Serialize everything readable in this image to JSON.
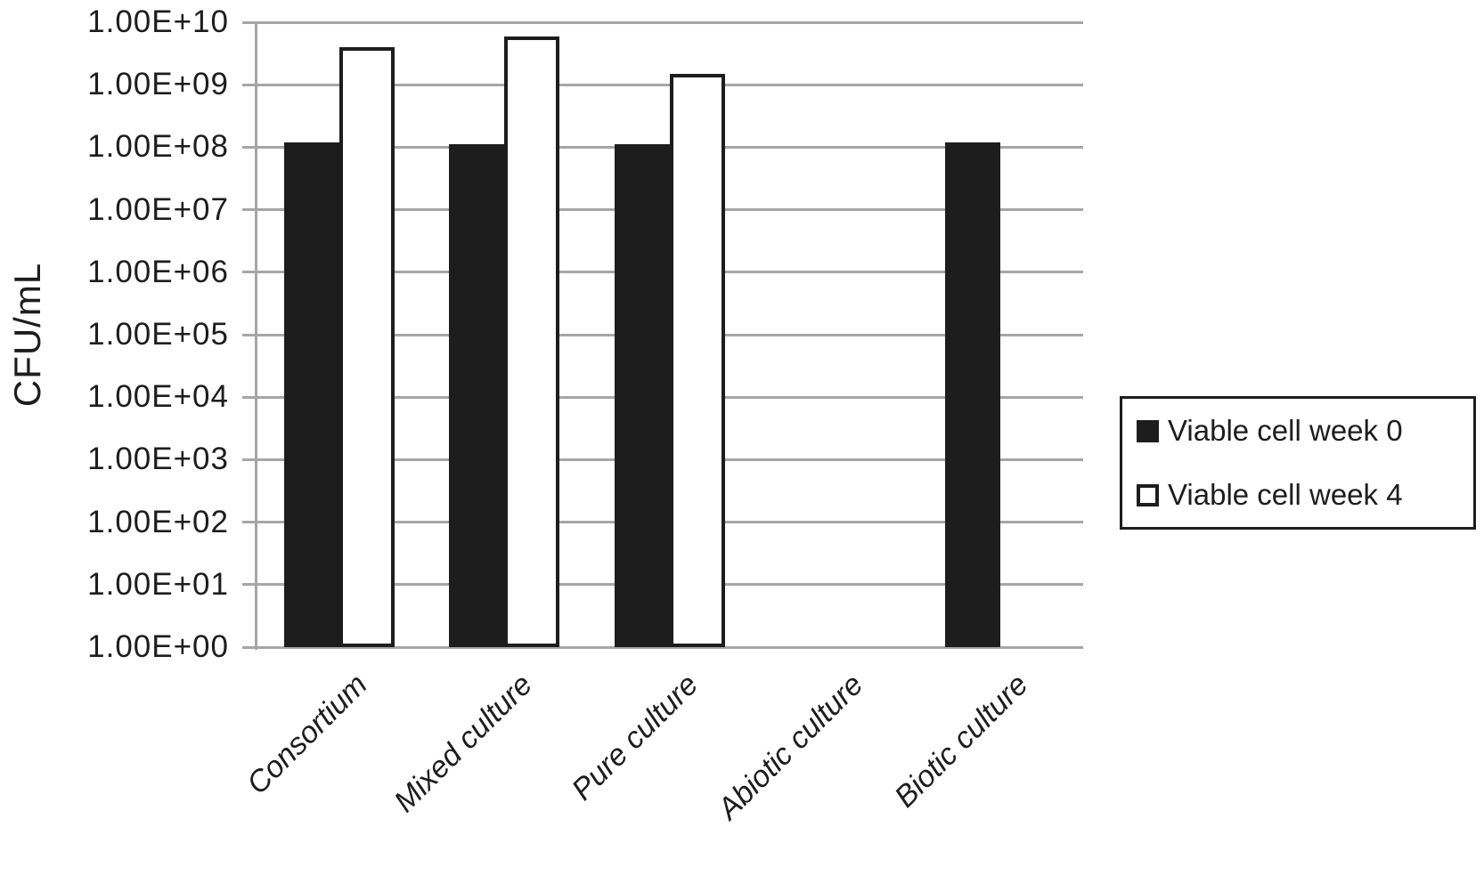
{
  "chart_data": {
    "type": "bar",
    "title": "",
    "xlabel": "",
    "ylabel": "CFU/mL",
    "y_scale": "log10",
    "ylim": [
      1,
      10000000000
    ],
    "yticks": [
      "1.00E+10",
      "1.00E+09",
      "1.00E+08",
      "1.00E+07",
      "1.00E+06",
      "1.00E+05",
      "1.00E+04",
      "1.00E+03",
      "1.00E+02",
      "1.00E+01",
      "1.00E+00"
    ],
    "categories": [
      "Consortium",
      "Mixed culture",
      "Pure culture",
      "Abiotic culture",
      "Biotic culture"
    ],
    "series": [
      {
        "name": "Viable cell week 0",
        "style": "filled-black",
        "values": [
          120000000.0,
          110000000.0,
          110000000.0,
          null,
          120000000.0
        ]
      },
      {
        "name": "Viable cell week 4",
        "style": "open-white",
        "values": [
          4000000000.0,
          6000000000.0,
          1500000000.0,
          null,
          null
        ]
      }
    ],
    "grid": true,
    "legend_position": "right-middle"
  },
  "colors": {
    "ink": "#1d1d1d",
    "grid": "#a6a6a6",
    "background": "#ffffff"
  }
}
